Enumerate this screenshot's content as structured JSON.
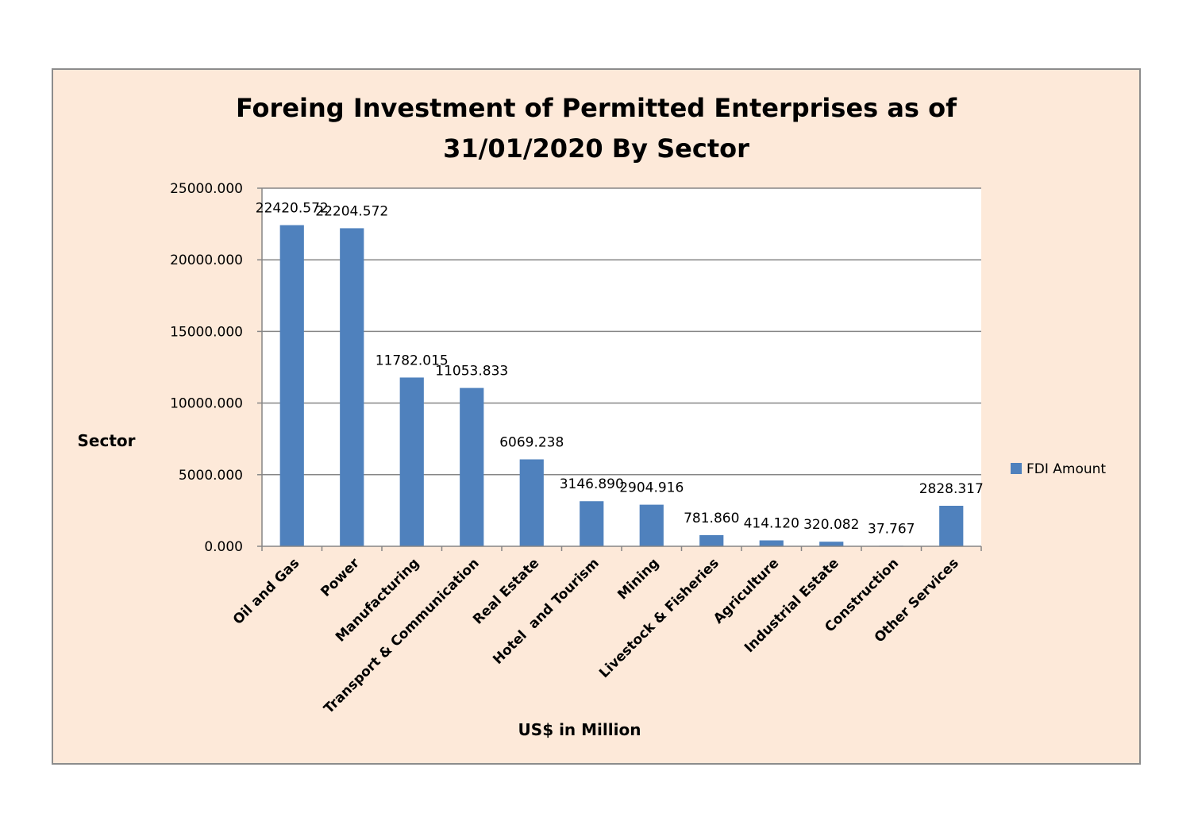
{
  "chart_data": {
    "type": "bar",
    "title_lines": [
      "Foreing Investment of Permitted Enterprises as of",
      "31/01/2020 By Sector"
    ],
    "ylabel": "Sector",
    "xlabel": "US$ in Million",
    "ylim": [
      0,
      25000
    ],
    "yticks": [
      "0.000",
      "5000.000",
      "10000.000",
      "15000.000",
      "20000.000",
      "25000.000"
    ],
    "categories": [
      "Oil and Gas",
      "Power",
      "Manufacturing",
      "Transport & Communication",
      "Real Estate",
      "Hotel  and Tourism",
      "Mining",
      "Livestock & Fisheries",
      "Agriculture",
      "Industrial Estate",
      "Construction",
      "Other Services"
    ],
    "series": [
      {
        "name": "FDI Amount",
        "color": "#4f81bd",
        "values": [
          22420.572,
          22204.572,
          11782.015,
          11053.833,
          6069.238,
          3146.89,
          2904.916,
          781.86,
          414.12,
          320.082,
          37.767,
          2828.317
        ],
        "labels": [
          "22420.572",
          "22204.572",
          "11782.015",
          "11053.833",
          "6069.238",
          "3146.890",
          "2904.916",
          "781.860",
          "414.120",
          "320.082",
          "37.767",
          "2828.317"
        ]
      }
    ],
    "grid": true,
    "legend_position": "right",
    "background": "#fde9d9",
    "plot_background": "#ffffff",
    "gridline_color": "#868686"
  }
}
